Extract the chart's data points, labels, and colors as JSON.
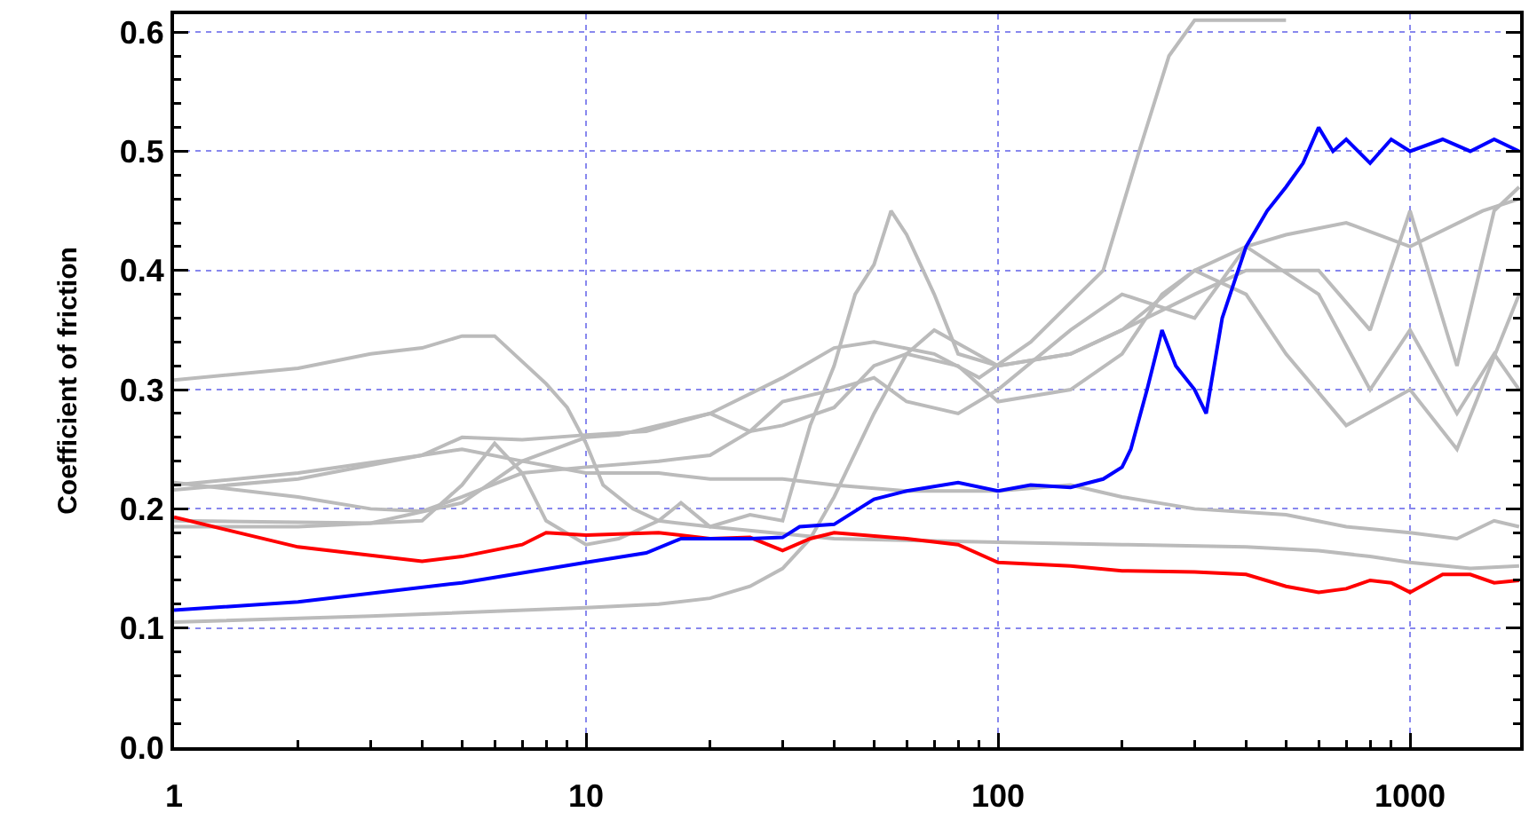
{
  "chart_data": {
    "type": "line",
    "ylabel": "Coefficient of friction",
    "log": "x",
    "grid": true,
    "marker": "none",
    "line_style": "solid",
    "xlim": [
      1,
      1850
    ],
    "xticks": [
      1,
      10,
      100,
      1000
    ],
    "ylim": [
      0,
      0.615
    ],
    "yticks": [
      {
        "value": 0,
        "label": "0.0"
      },
      {
        "value": 0.1,
        "label": "0.1"
      },
      {
        "value": 0.2,
        "label": "0.2"
      },
      {
        "value": 0.3,
        "label": "0.3"
      },
      {
        "value": 0.4,
        "label": "0.4"
      },
      {
        "value": 0.5,
        "label": "0.5"
      },
      {
        "value": 0.6,
        "label": "0.6"
      }
    ],
    "series": [
      {
        "color": "#bbbbbb",
        "x": [
          1,
          2,
          3,
          4,
          5,
          6,
          8,
          9,
          10,
          11,
          13,
          15,
          20,
          40,
          100,
          200,
          400,
          600,
          800,
          1000,
          1400,
          1840
        ],
        "values": [
          0.308,
          0.318,
          0.33,
          0.335,
          0.345,
          0.345,
          0.305,
          0.285,
          0.255,
          0.22,
          0.2,
          0.19,
          0.185,
          0.175,
          0.172,
          0.17,
          0.168,
          0.165,
          0.16,
          0.155,
          0.15,
          0.152
        ]
      },
      {
        "color": "#bbbbbb",
        "x": [
          1,
          2,
          4,
          5,
          7,
          10,
          14,
          20,
          30,
          40,
          50,
          70,
          90,
          120,
          180,
          220,
          260,
          300,
          400,
          500
        ],
        "values": [
          0.22,
          0.23,
          0.245,
          0.26,
          0.258,
          0.262,
          0.265,
          0.28,
          0.31,
          0.335,
          0.34,
          0.33,
          0.31,
          0.34,
          0.4,
          0.5,
          0.58,
          0.61,
          0.61,
          0.61
        ]
      },
      {
        "color": "#bbbbbb",
        "x": [
          1,
          2,
          3,
          4,
          5,
          7,
          10,
          15,
          20,
          25,
          30,
          40,
          50,
          60,
          80,
          100,
          150,
          200,
          250,
          300,
          400,
          500,
          700,
          1000,
          1500,
          1840
        ],
        "values": [
          0.222,
          0.21,
          0.2,
          0.198,
          0.21,
          0.23,
          0.235,
          0.24,
          0.245,
          0.265,
          0.27,
          0.285,
          0.32,
          0.33,
          0.32,
          0.29,
          0.3,
          0.33,
          0.38,
          0.4,
          0.42,
          0.43,
          0.44,
          0.42,
          0.45,
          0.46
        ]
      },
      {
        "color": "#bbbbbb",
        "x": [
          1,
          2,
          4,
          5,
          7,
          10,
          15,
          20,
          30,
          40,
          60,
          100,
          150,
          200,
          300,
          500,
          700,
          1000,
          1300,
          1600,
          1840
        ],
        "values": [
          0.216,
          0.225,
          0.245,
          0.25,
          0.24,
          0.23,
          0.23,
          0.225,
          0.225,
          0.22,
          0.215,
          0.215,
          0.22,
          0.21,
          0.2,
          0.195,
          0.185,
          0.18,
          0.175,
          0.19,
          0.185
        ]
      },
      {
        "color": "#bbbbbb",
        "x": [
          1,
          3,
          5,
          7,
          10,
          12,
          15,
          20,
          25,
          30,
          40,
          50,
          60,
          80,
          100,
          150,
          200,
          300,
          400,
          600,
          800,
          1000,
          1300,
          1600,
          1840
        ],
        "values": [
          0.19,
          0.188,
          0.205,
          0.24,
          0.26,
          0.262,
          0.27,
          0.28,
          0.265,
          0.29,
          0.3,
          0.31,
          0.29,
          0.28,
          0.3,
          0.35,
          0.38,
          0.36,
          0.42,
          0.38,
          0.3,
          0.35,
          0.28,
          0.33,
          0.3
        ]
      },
      {
        "color": "#bbbbbb",
        "x": [
          1,
          2,
          4,
          5,
          6,
          7,
          8,
          10,
          12,
          15,
          17,
          20,
          25,
          30,
          35,
          40,
          45,
          50,
          55,
          60,
          70,
          80,
          100,
          150,
          200,
          300,
          400,
          500,
          700,
          1000,
          1300,
          1840
        ],
        "values": [
          0.185,
          0.185,
          0.19,
          0.22,
          0.255,
          0.23,
          0.19,
          0.17,
          0.175,
          0.19,
          0.205,
          0.185,
          0.195,
          0.19,
          0.27,
          0.32,
          0.38,
          0.405,
          0.45,
          0.43,
          0.38,
          0.33,
          0.32,
          0.33,
          0.35,
          0.4,
          0.38,
          0.33,
          0.27,
          0.3,
          0.25,
          0.38
        ]
      },
      {
        "color": "#bbbbbb",
        "x": [
          1,
          3,
          10,
          15,
          20,
          25,
          30,
          35,
          40,
          50,
          60,
          70,
          100,
          150,
          200,
          300,
          400,
          600,
          800,
          1000,
          1300,
          1600,
          1840
        ],
        "values": [
          0.105,
          0.11,
          0.117,
          0.12,
          0.125,
          0.135,
          0.15,
          0.175,
          0.21,
          0.28,
          0.33,
          0.35,
          0.32,
          0.33,
          0.35,
          0.38,
          0.4,
          0.4,
          0.35,
          0.45,
          0.32,
          0.45,
          0.47
        ]
      },
      {
        "color": "#ff0000",
        "x": [
          1,
          2,
          4,
          5,
          7,
          8,
          10,
          15,
          20,
          25,
          30,
          35,
          40,
          60,
          80,
          100,
          150,
          200,
          300,
          400,
          500,
          600,
          700,
          800,
          900,
          1000,
          1200,
          1400,
          1600,
          1840
        ],
        "values": [
          0.193,
          0.168,
          0.156,
          0.16,
          0.17,
          0.18,
          0.178,
          0.18,
          0.175,
          0.176,
          0.165,
          0.175,
          0.18,
          0.175,
          0.17,
          0.155,
          0.152,
          0.148,
          0.147,
          0.145,
          0.135,
          0.13,
          0.133,
          0.14,
          0.138,
          0.13,
          0.145,
          0.145,
          0.138,
          0.14
        ]
      },
      {
        "color": "#0000ff",
        "x": [
          1,
          2,
          5,
          10,
          14,
          17,
          25,
          30,
          33,
          40,
          50,
          60,
          80,
          100,
          120,
          150,
          180,
          200,
          210,
          230,
          250,
          270,
          300,
          320,
          350,
          400,
          450,
          500,
          550,
          600,
          650,
          700,
          800,
          900,
          1000,
          1200,
          1400,
          1600,
          1840
        ],
        "values": [
          0.115,
          0.122,
          0.138,
          0.155,
          0.163,
          0.175,
          0.175,
          0.176,
          0.185,
          0.187,
          0.208,
          0.215,
          0.222,
          0.215,
          0.22,
          0.218,
          0.225,
          0.235,
          0.25,
          0.3,
          0.35,
          0.32,
          0.3,
          0.28,
          0.36,
          0.42,
          0.45,
          0.47,
          0.49,
          0.52,
          0.5,
          0.51,
          0.49,
          0.51,
          0.5,
          0.51,
          0.5,
          0.51,
          0.5
        ]
      }
    ]
  }
}
